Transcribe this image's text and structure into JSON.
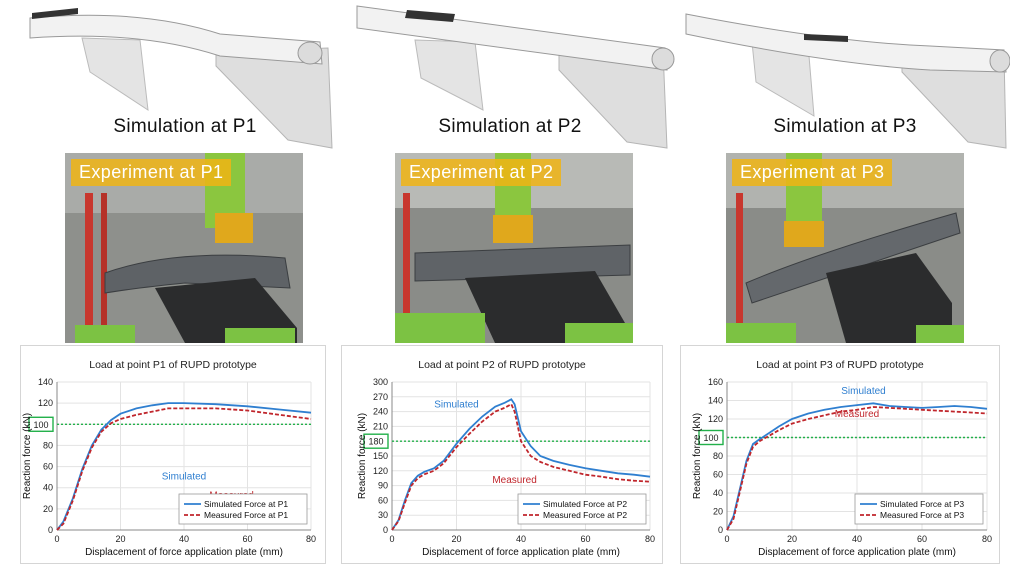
{
  "panels": [
    {
      "sim_title": "Simulation at P1",
      "exp_label": "Experiment at P1",
      "chart_data": {
        "type": "line",
        "title": "Load at point P1 of RUPD prototype",
        "xlabel": "Displacement of force application plate (mm)",
        "ylabel": "Reaction force (kN)",
        "xlim": [
          0,
          80
        ],
        "ylim": [
          0,
          140
        ],
        "xticks": [
          0,
          20,
          40,
          60,
          80
        ],
        "yticks": [
          0,
          20,
          40,
          60,
          80,
          100,
          120,
          140
        ],
        "ref_line": 100,
        "ref_label": "100",
        "annotations": {
          "simulated": "Simulated",
          "measured": "Measured"
        },
        "legend_position": "bottom-right",
        "series": [
          {
            "name": "Simulated Force at P1",
            "color": "#2f7fd0",
            "dash": false,
            "x": [
              0,
              2,
              5,
              8,
              11,
              14,
              17,
              20,
              25,
              30,
              35,
              40,
              50,
              60,
              70,
              80
            ],
            "y": [
              0,
              8,
              30,
              58,
              80,
              95,
              104,
              110,
              115,
              118,
              120,
              120,
              119,
              117,
              114,
              111
            ]
          },
          {
            "name": "Measured Force at P1",
            "color": "#c0262c",
            "dash": true,
            "x": [
              0,
              2,
              5,
              8,
              11,
              14,
              17,
              20,
              25,
              30,
              35,
              40,
              50,
              60,
              70,
              80
            ],
            "y": [
              0,
              6,
              28,
              56,
              78,
              93,
              101,
              105,
              109,
              112,
              115,
              115,
              115,
              113,
              109,
              105
            ]
          }
        ]
      }
    },
    {
      "sim_title": "Simulation at P2",
      "exp_label": "Experiment at P2",
      "chart_data": {
        "type": "line",
        "title": "Load at point P2 of RUPD prototype",
        "xlabel": "Displacement of force application plate (mm)",
        "ylabel": "Reaction force (kN)",
        "xlim": [
          0,
          80
        ],
        "ylim": [
          0,
          300
        ],
        "xticks": [
          0,
          20,
          40,
          60,
          80
        ],
        "yticks": [
          0,
          30,
          60,
          90,
          120,
          150,
          180,
          210,
          240,
          270,
          300
        ],
        "ref_line": 180,
        "ref_label": "180",
        "annotations": {
          "simulated": "Simulated",
          "measured": "Measured"
        },
        "legend_position": "bottom-right",
        "series": [
          {
            "name": "Simulated Force at P2",
            "color": "#2f7fd0",
            "dash": false,
            "x": [
              0,
              2,
              4,
              6,
              8,
              10,
              13,
              16,
              20,
              24,
              28,
              32,
              35,
              37,
              38,
              40,
              43,
              46,
              50,
              55,
              60,
              65,
              70,
              75,
              80
            ],
            "y": [
              0,
              20,
              60,
              95,
              110,
              118,
              125,
              140,
              175,
              205,
              230,
              250,
              258,
              265,
              255,
              200,
              170,
              150,
              140,
              132,
              125,
              120,
              115,
              112,
              108
            ]
          },
          {
            "name": "Measured Force at P2",
            "color": "#c0262c",
            "dash": true,
            "x": [
              0,
              2,
              4,
              6,
              8,
              10,
              13,
              16,
              20,
              24,
              28,
              32,
              35,
              37,
              38,
              40,
              43,
              46,
              50,
              55,
              60,
              65,
              70,
              75,
              80
            ],
            "y": [
              0,
              18,
              55,
              90,
              105,
              113,
              120,
              135,
              168,
              195,
              220,
              240,
              248,
              255,
              240,
              180,
              150,
              138,
              128,
              120,
              112,
              108,
              103,
              100,
              98
            ]
          }
        ]
      }
    },
    {
      "sim_title": "Simulation at P3",
      "exp_label": "Experiment at P3",
      "chart_data": {
        "type": "line",
        "title": "Load at point P3 of RUPD prototype",
        "xlabel": "Displacement of force application plate (mm)",
        "ylabel": "Reaction force (kN)",
        "xlim": [
          0,
          80
        ],
        "ylim": [
          0,
          160
        ],
        "xticks": [
          0,
          20,
          40,
          60,
          80
        ],
        "yticks": [
          0,
          20,
          40,
          60,
          80,
          100,
          120,
          140,
          160
        ],
        "ref_line": 100,
        "ref_label": "100",
        "annotations": {
          "simulated": "Simulated",
          "measured": "Measured"
        },
        "legend_position": "bottom-right",
        "series": [
          {
            "name": "Simulated Force at P3",
            "color": "#2f7fd0",
            "dash": false,
            "x": [
              0,
              2,
              4,
              6,
              8,
              10,
              13,
              16,
              20,
              25,
              30,
              35,
              40,
              45,
              50,
              55,
              60,
              65,
              70,
              75,
              80
            ],
            "y": [
              0,
              15,
              45,
              75,
              93,
              98,
              105,
              112,
              120,
              126,
              130,
              133,
              135,
              137,
              134,
              133,
              132,
              133,
              134,
              133,
              131
            ]
          },
          {
            "name": "Measured Force at P3",
            "color": "#c0262c",
            "dash": true,
            "x": [
              0,
              2,
              4,
              6,
              8,
              10,
              13,
              16,
              20,
              25,
              30,
              35,
              40,
              45,
              50,
              55,
              60,
              65,
              70,
              75,
              80
            ],
            "y": [
              0,
              12,
              42,
              72,
              90,
              96,
              102,
              108,
              115,
              120,
              124,
              128,
              130,
              133,
              132,
              131,
              130,
              129,
              128,
              127,
              126
            ]
          }
        ]
      }
    }
  ]
}
